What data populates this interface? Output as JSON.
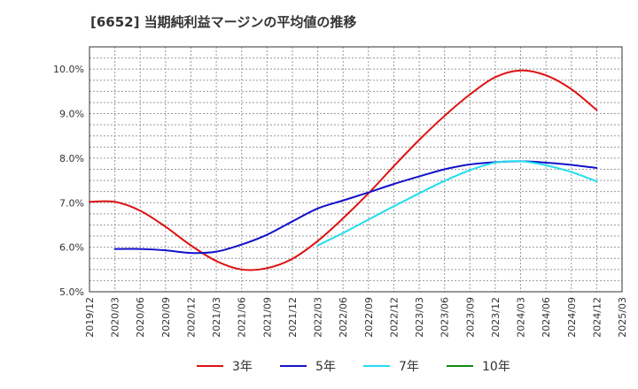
{
  "chart_data": {
    "type": "line",
    "title": "[6652]  当期純利益マージンの平均値の推移",
    "xlabel": "",
    "ylabel": "",
    "ylim": [
      5.0,
      10.5
    ],
    "y_ticks": [
      5.0,
      6.0,
      7.0,
      8.0,
      9.0,
      10.0
    ],
    "y_tick_labels": [
      "5.0%",
      "6.0%",
      "7.0%",
      "8.0%",
      "9.0%",
      "10.0%"
    ],
    "categories": [
      "2019/12",
      "2020/03",
      "2020/06",
      "2020/09",
      "2020/12",
      "2021/03",
      "2021/06",
      "2021/09",
      "2021/12",
      "2022/03",
      "2022/06",
      "2022/09",
      "2022/12",
      "2023/03",
      "2023/06",
      "2023/09",
      "2023/12",
      "2024/03",
      "2024/06",
      "2024/09",
      "2024/12",
      "2025/03"
    ],
    "grid": true,
    "legend_position": "bottom",
    "series": [
      {
        "name": "3年",
        "color": "#dd1111",
        "values": [
          7.02,
          7.02,
          6.82,
          6.46,
          6.04,
          5.69,
          5.5,
          5.53,
          5.74,
          6.14,
          6.65,
          7.21,
          7.82,
          8.41,
          8.95,
          9.43,
          9.82,
          9.97,
          9.86,
          9.55,
          9.08,
          null
        ]
      },
      {
        "name": "5年",
        "color": "#1111cc",
        "values": [
          null,
          5.96,
          5.96,
          5.93,
          5.87,
          5.9,
          6.06,
          6.28,
          6.58,
          6.87,
          7.05,
          7.23,
          7.42,
          7.59,
          7.75,
          7.86,
          7.91,
          7.93,
          7.9,
          7.85,
          7.78,
          null
        ]
      },
      {
        "name": "7年",
        "color": "#22ddee",
        "values": [
          null,
          null,
          null,
          null,
          null,
          null,
          null,
          null,
          null,
          6.04,
          6.32,
          6.62,
          6.92,
          7.21,
          7.49,
          7.73,
          7.9,
          7.93,
          7.84,
          7.69,
          7.48,
          null
        ]
      },
      {
        "name": "10年",
        "color": "#118811",
        "values": [
          null,
          null,
          null,
          null,
          null,
          null,
          null,
          null,
          null,
          null,
          null,
          null,
          null,
          null,
          null,
          null,
          null,
          null,
          null,
          null,
          null,
          null
        ]
      }
    ]
  }
}
